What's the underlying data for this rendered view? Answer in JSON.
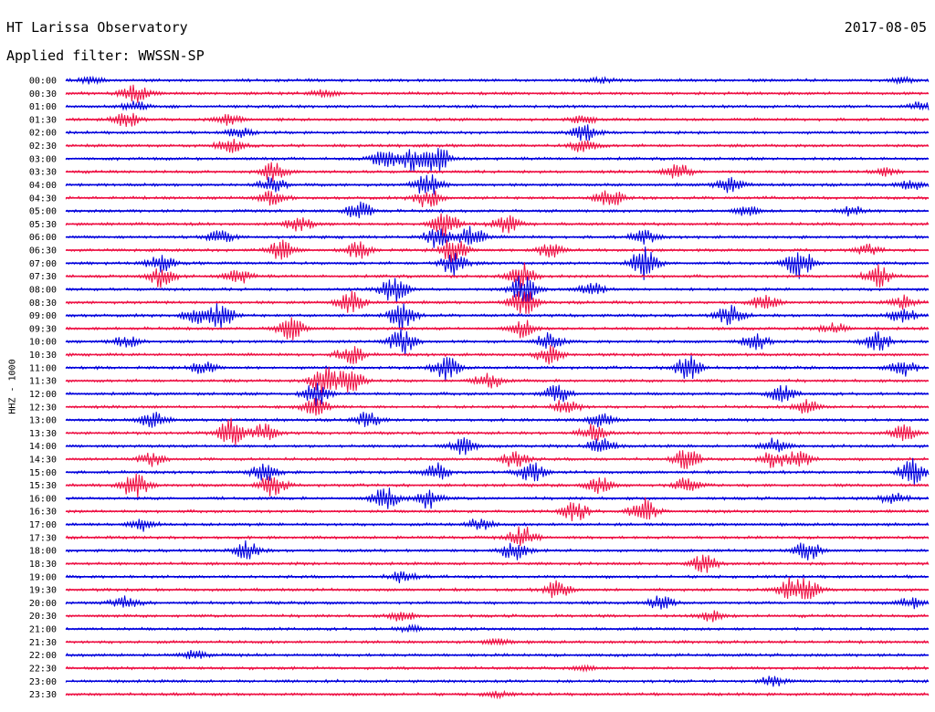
{
  "header": {
    "station": "HT Larissa Observatory",
    "filter": "Applied filter: WWSSN-SP",
    "date": "2017-08-05"
  },
  "chart_data": {
    "type": "line",
    "title": "HT Larissa Observatory",
    "subtitle": "Applied filter: WWSSN-SP",
    "date": "2017-08-05",
    "ylabel": "HHZ - 1000",
    "xlabel": "",
    "row_labels": [
      "00:00",
      "00:30",
      "01:00",
      "01:30",
      "02:00",
      "02:30",
      "03:00",
      "03:30",
      "04:00",
      "04:30",
      "05:00",
      "05:30",
      "06:00",
      "06:30",
      "07:00",
      "07:30",
      "08:00",
      "08:30",
      "09:00",
      "09:30",
      "10:00",
      "10:30",
      "11:00",
      "11:30",
      "12:00",
      "12:30",
      "13:00",
      "13:30",
      "14:00",
      "14:30",
      "15:00",
      "15:30",
      "16:00",
      "16:30",
      "17:00",
      "17:30",
      "18:00",
      "18:30",
      "19:00",
      "19:30",
      "20:00",
      "20:30",
      "21:00",
      "21:30",
      "22:00",
      "22:30",
      "23:00",
      "23:30"
    ],
    "row_minutes": 30,
    "series_colors": [
      "#0000dd",
      "#ee1144"
    ],
    "trace_activity": [
      [
        [
          0.03,
          0.4
        ],
        [
          0.62,
          0.3
        ],
        [
          0.97,
          0.3
        ]
      ],
      [
        [
          0.08,
          1.2
        ],
        [
          0.3,
          0.4
        ]
      ],
      [
        [
          0.08,
          0.6
        ],
        [
          0.99,
          0.5
        ]
      ],
      [
        [
          0.07,
          1.0
        ],
        [
          0.19,
          0.6
        ],
        [
          0.6,
          0.4
        ]
      ],
      [
        [
          0.2,
          0.6
        ],
        [
          0.6,
          1.1
        ]
      ],
      [
        [
          0.19,
          0.9
        ],
        [
          0.6,
          0.8
        ]
      ],
      [
        [
          0.37,
          1.2
        ],
        [
          0.4,
          1.5
        ],
        [
          0.43,
          1.6
        ]
      ],
      [
        [
          0.24,
          1.1
        ],
        [
          0.71,
          0.9
        ],
        [
          0.95,
          0.5
        ]
      ],
      [
        [
          0.24,
          1.0
        ],
        [
          0.42,
          1.5
        ],
        [
          0.77,
          1.0
        ],
        [
          0.98,
          0.6
        ]
      ],
      [
        [
          0.24,
          0.9
        ],
        [
          0.42,
          1.3
        ],
        [
          0.63,
          1.2
        ]
      ],
      [
        [
          0.34,
          1.1
        ],
        [
          0.79,
          0.6
        ],
        [
          0.91,
          0.6
        ]
      ],
      [
        [
          0.27,
          0.9
        ],
        [
          0.44,
          1.5
        ],
        [
          0.51,
          1.1
        ]
      ],
      [
        [
          0.18,
          0.8
        ],
        [
          0.43,
          1.3
        ],
        [
          0.47,
          1.4
        ],
        [
          0.67,
          0.8
        ]
      ],
      [
        [
          0.25,
          1.2
        ],
        [
          0.34,
          1.0
        ],
        [
          0.45,
          1.6
        ],
        [
          0.56,
          0.9
        ],
        [
          0.93,
          0.6
        ]
      ],
      [
        [
          0.11,
          1.0
        ],
        [
          0.45,
          1.5
        ],
        [
          0.67,
          2.0
        ],
        [
          0.85,
          1.8
        ]
      ],
      [
        [
          0.11,
          1.4
        ],
        [
          0.2,
          0.9
        ],
        [
          0.53,
          1.6
        ],
        [
          0.94,
          1.4
        ]
      ],
      [
        [
          0.38,
          1.6
        ],
        [
          0.53,
          1.8
        ],
        [
          0.61,
          0.8
        ]
      ],
      [
        [
          0.33,
          1.4
        ],
        [
          0.53,
          1.6
        ],
        [
          0.81,
          0.9
        ],
        [
          0.97,
          0.8
        ]
      ],
      [
        [
          0.15,
          1.0
        ],
        [
          0.18,
          1.5
        ],
        [
          0.39,
          1.7
        ],
        [
          0.77,
          1.3
        ],
        [
          0.97,
          0.9
        ]
      ],
      [
        [
          0.26,
          1.5
        ],
        [
          0.53,
          1.1
        ],
        [
          0.89,
          0.7
        ]
      ],
      [
        [
          0.07,
          0.8
        ],
        [
          0.39,
          1.6
        ],
        [
          0.56,
          1.0
        ],
        [
          0.8,
          1.1
        ],
        [
          0.94,
          1.4
        ]
      ],
      [
        [
          0.33,
          1.3
        ],
        [
          0.56,
          1.1
        ]
      ],
      [
        [
          0.16,
          0.8
        ],
        [
          0.44,
          1.5
        ],
        [
          0.72,
          1.6
        ],
        [
          0.97,
          1.1
        ]
      ],
      [
        [
          0.3,
          1.9
        ],
        [
          0.33,
          1.7
        ],
        [
          0.49,
          1.0
        ]
      ],
      [
        [
          0.29,
          1.4
        ],
        [
          0.57,
          1.1
        ],
        [
          0.83,
          1.0
        ]
      ],
      [
        [
          0.29,
          1.1
        ],
        [
          0.58,
          1.0
        ],
        [
          0.86,
          0.9
        ]
      ],
      [
        [
          0.1,
          1.0
        ],
        [
          0.35,
          0.9
        ],
        [
          0.62,
          0.8
        ]
      ],
      [
        [
          0.19,
          1.8
        ],
        [
          0.23,
          1.0
        ],
        [
          0.61,
          1.0
        ],
        [
          0.97,
          1.0
        ]
      ],
      [
        [
          0.46,
          1.0
        ],
        [
          0.62,
          1.1
        ],
        [
          0.82,
          0.9
        ]
      ],
      [
        [
          0.1,
          0.8
        ],
        [
          0.52,
          1.1
        ],
        [
          0.72,
          1.2
        ],
        [
          0.82,
          1.0
        ],
        [
          0.85,
          1.0
        ]
      ],
      [
        [
          0.23,
          1.2
        ],
        [
          0.43,
          1.1
        ],
        [
          0.54,
          1.2
        ],
        [
          0.98,
          1.6
        ]
      ],
      [
        [
          0.08,
          1.6
        ],
        [
          0.24,
          1.4
        ],
        [
          0.62,
          1.0
        ],
        [
          0.72,
          0.9
        ]
      ],
      [
        [
          0.37,
          1.4
        ],
        [
          0.42,
          1.2
        ],
        [
          0.96,
          0.8
        ]
      ],
      [
        [
          0.59,
          1.2
        ],
        [
          0.67,
          1.6
        ]
      ],
      [
        [
          0.09,
          0.8
        ],
        [
          0.48,
          0.7
        ]
      ],
      [
        [
          0.53,
          1.4
        ]
      ],
      [
        [
          0.21,
          1.1
        ],
        [
          0.52,
          1.2
        ],
        [
          0.86,
          1.2
        ]
      ],
      [
        [
          0.74,
          1.1
        ]
      ],
      [
        [
          0.39,
          0.7
        ]
      ],
      [
        [
          0.57,
          1.1
        ],
        [
          0.84,
          1.3
        ],
        [
          0.86,
          1.0
        ]
      ],
      [
        [
          0.07,
          0.8
        ],
        [
          0.69,
          0.8
        ],
        [
          0.98,
          0.6
        ]
      ],
      [
        [
          0.39,
          0.6
        ],
        [
          0.75,
          0.7
        ]
      ],
      [
        [
          0.4,
          0.4
        ]
      ],
      [
        [
          0.5,
          0.4
        ]
      ],
      [
        [
          0.15,
          0.5
        ]
      ],
      [
        [
          0.6,
          0.3
        ]
      ],
      [
        [
          0.82,
          0.6
        ]
      ],
      [
        [
          0.5,
          0.3
        ]
      ]
    ],
    "grid": false,
    "legend": "none"
  }
}
